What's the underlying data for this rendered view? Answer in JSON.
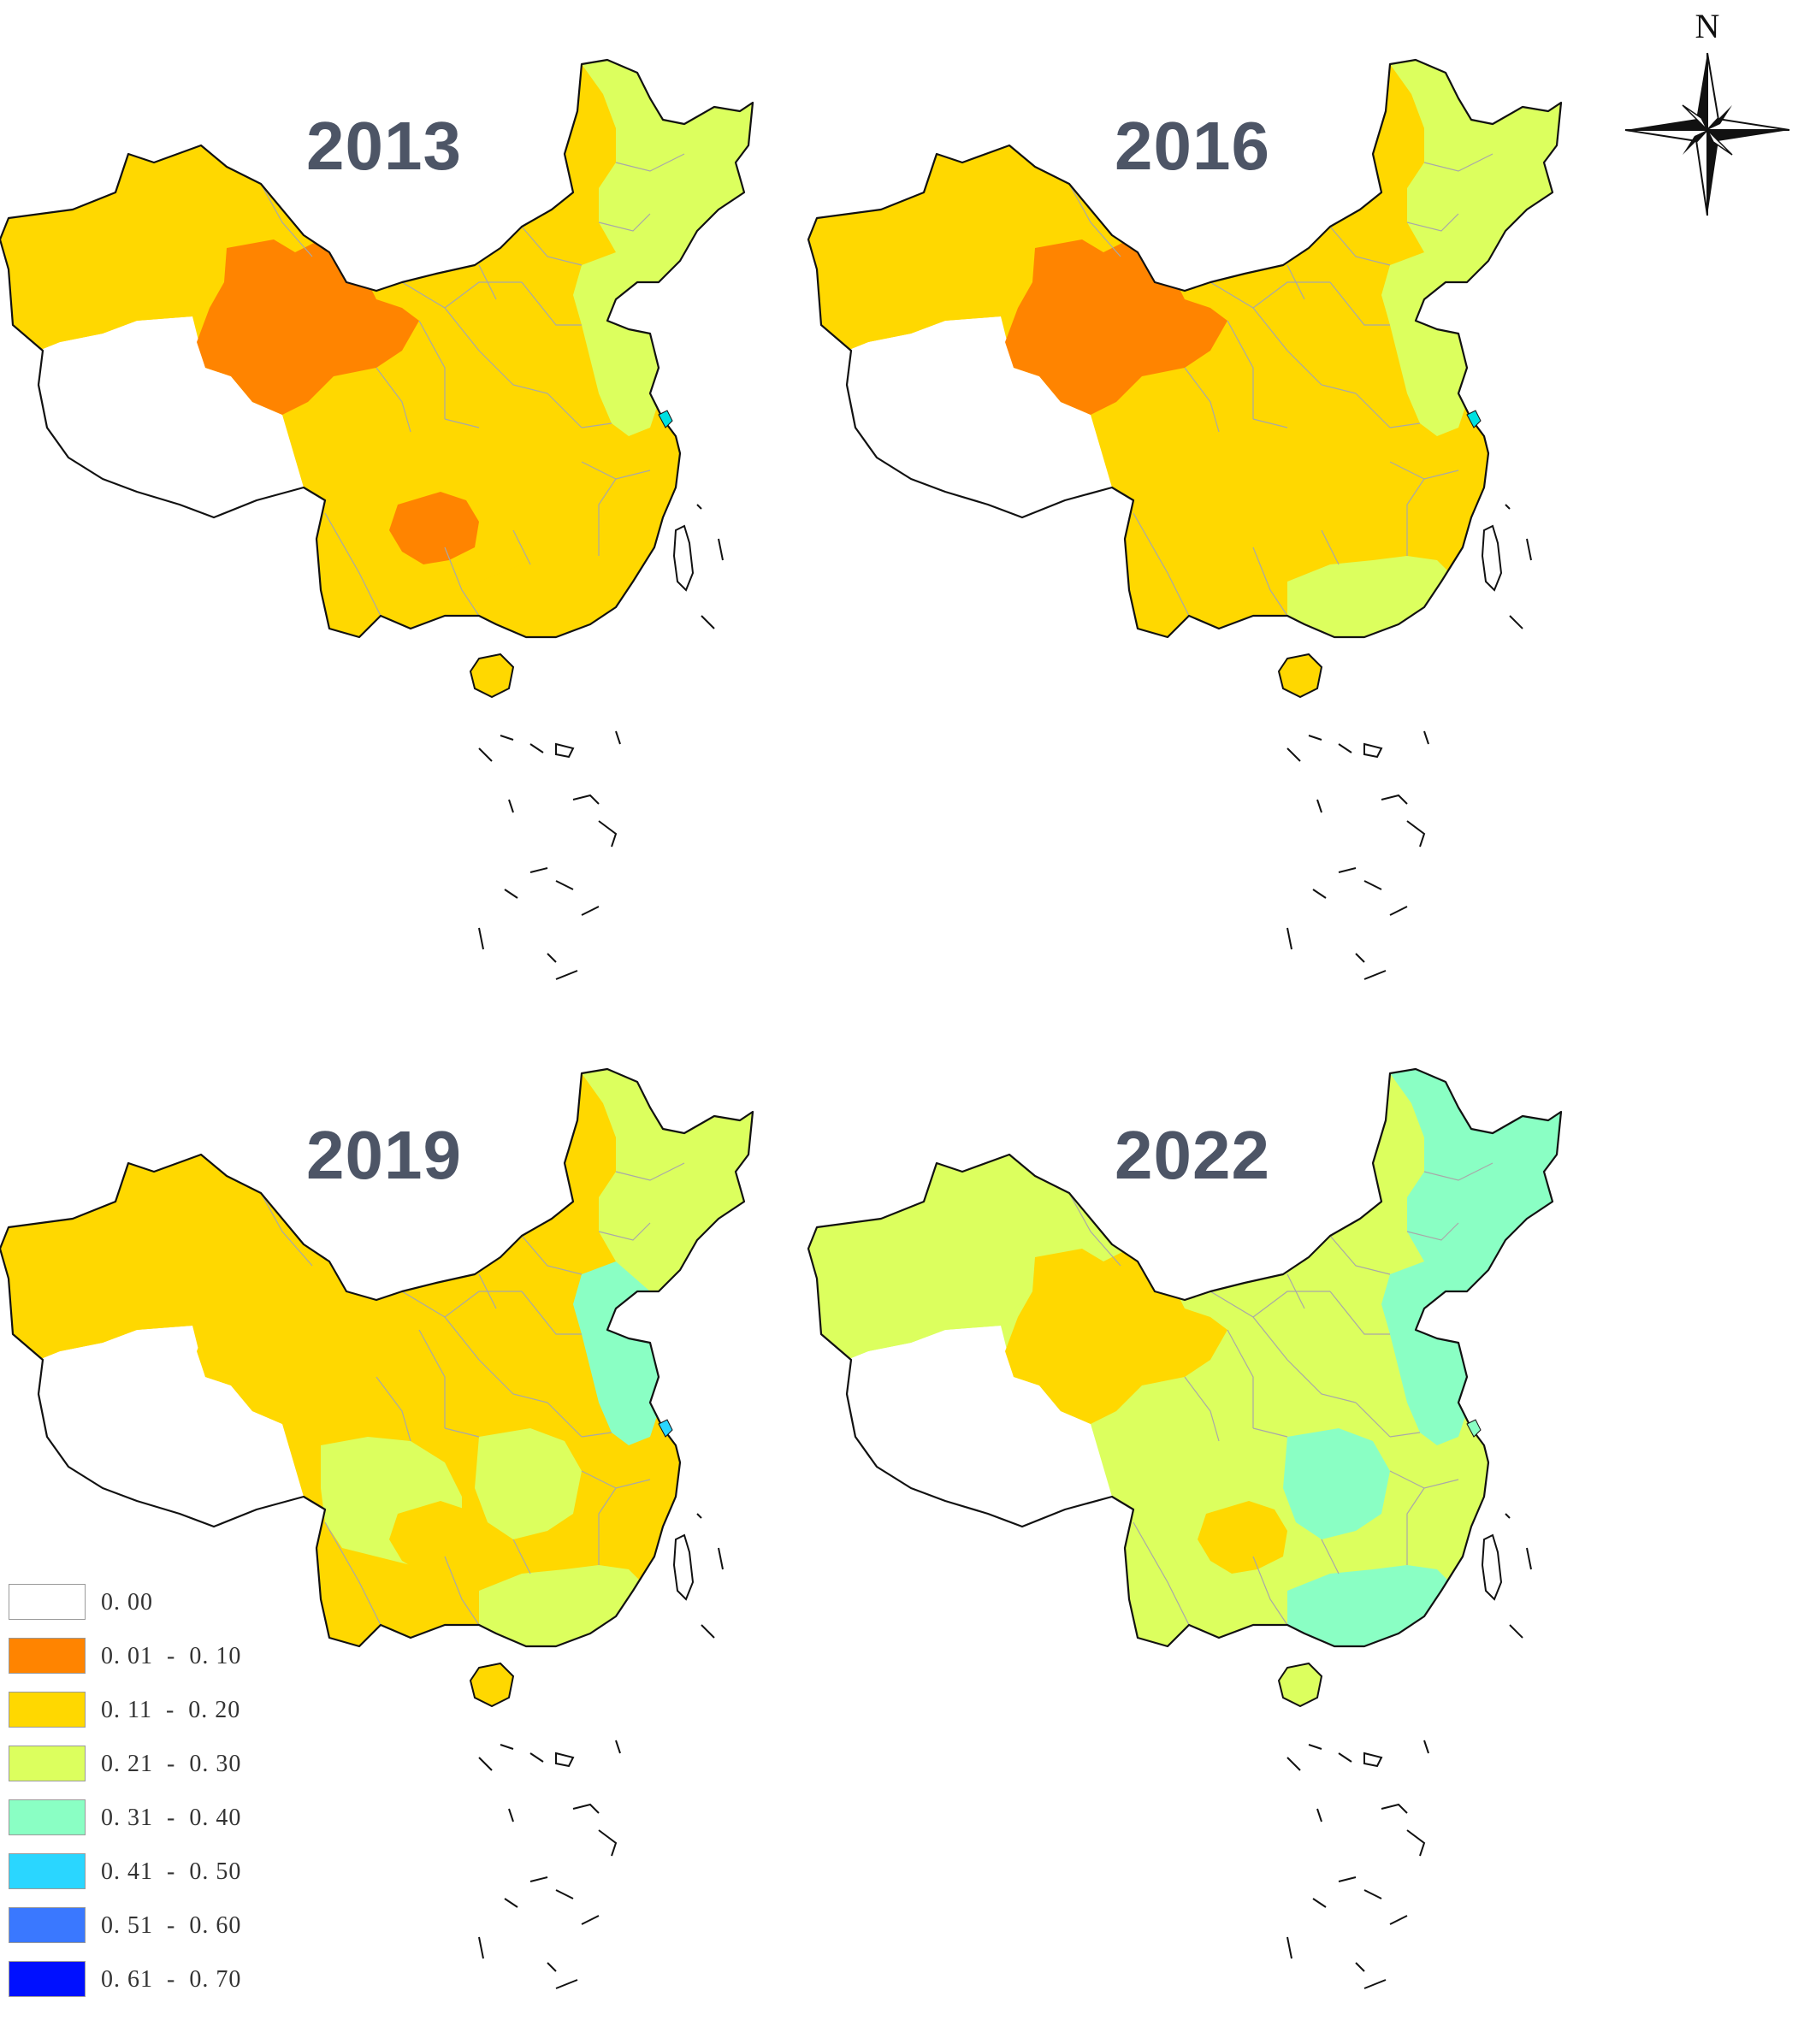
{
  "panels": [
    {
      "id": "p2013",
      "title": "2013",
      "colors": {
        "default": "#ffd800",
        "northeast": "#dcff5e",
        "east": "#dcff5e",
        "south": "#ffd800",
        "northwest": "#ffd800",
        "qinghai": "#ff8400",
        "guizhou": "#ff8400",
        "sichuan": "#ffd800",
        "central": "#ffd800",
        "hainan": "#ffd800",
        "shanghai": "#00e0e0"
      }
    },
    {
      "id": "p2016",
      "title": "2016",
      "colors": {
        "default": "#ffd800",
        "northeast": "#dcff5e",
        "east": "#dcff5e",
        "south": "#dcff5e",
        "northwest": "#ffd800",
        "qinghai": "#ff8400",
        "guizhou": "#ffd800",
        "sichuan": "#ffd800",
        "central": "#ffd800",
        "hainan": "#ffd800",
        "shanghai": "#00e0e0"
      }
    },
    {
      "id": "p2019",
      "title": "2019",
      "colors": {
        "default": "#ffd800",
        "northeast": "#dcff5e",
        "east": "#8affc4",
        "south": "#dcff5e",
        "northwest": "#ffd800",
        "qinghai": "#ffd800",
        "guizhou": "#ffd800",
        "sichuan": "#dcff5e",
        "central": "#dcff5e",
        "hainan": "#ffd800",
        "shanghai": "#2ad6ff"
      }
    },
    {
      "id": "p2022",
      "title": "2022",
      "colors": {
        "default": "#dcff5e",
        "northeast": "#8affc4",
        "east": "#8affc4",
        "south": "#8affc4",
        "northwest": "#dcff5e",
        "qinghai": "#ffd800",
        "guizhou": "#ffd800",
        "sichuan": "#dcff5e",
        "central": "#8affc4",
        "hainan": "#dcff5e",
        "shanghai": "#8affc4"
      }
    }
  ],
  "compass": {
    "label": "N"
  },
  "legend": [
    {
      "label": "0. 00",
      "color": "#ffffff"
    },
    {
      "label": "0. 01  -  0. 10",
      "color": "#ff8400"
    },
    {
      "label": "0. 11  -  0. 20",
      "color": "#ffd800"
    },
    {
      "label": "0. 21  -  0. 30",
      "color": "#dcff5e"
    },
    {
      "label": "0. 31  -  0. 40",
      "color": "#8affc4"
    },
    {
      "label": "0. 41  -  0. 50",
      "color": "#2ad6ff"
    },
    {
      "label": "0. 51  -  0. 60",
      "color": "#3a78ff"
    },
    {
      "label": "0. 61  -  0. 70",
      "color": "#0010ff"
    }
  ]
}
